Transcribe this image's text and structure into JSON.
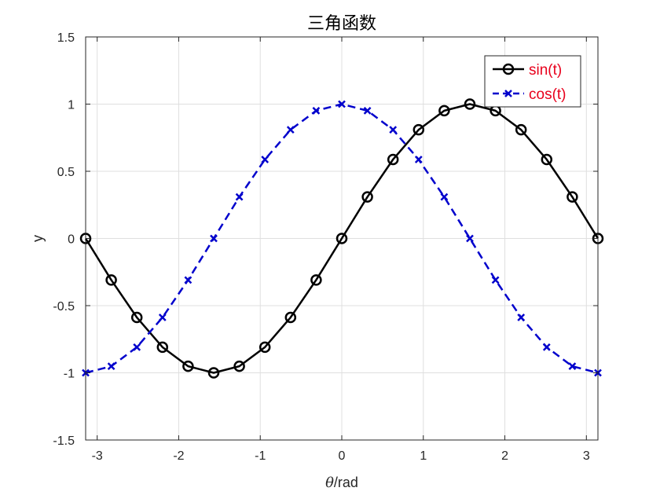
{
  "chart_data": {
    "type": "line",
    "title": "三角函数",
    "xlabel": "θ/rad",
    "ylabel": "y",
    "xlim": [
      -3.1416,
      3.1416
    ],
    "ylim": [
      -1.5,
      1.5
    ],
    "xticks": [
      -3,
      -2,
      -1,
      0,
      1,
      2,
      3
    ],
    "yticks": [
      -1.5,
      -1,
      -0.5,
      0,
      0.5,
      1,
      1.5
    ],
    "xtick_labels": [
      "-3",
      "-2",
      "-1",
      "0",
      "1",
      "2",
      "3"
    ],
    "ytick_labels": [
      "-1.5",
      "-1",
      "-0.5",
      "0",
      "0.5",
      "1",
      "1.5"
    ],
    "grid": true,
    "legend_position": "top-right",
    "legend_text_color": "#e8001c",
    "x": [
      -3.1416,
      -2.8274,
      -2.5133,
      -2.1991,
      -1.885,
      -1.5708,
      -1.2566,
      -0.9425,
      -0.6283,
      -0.3142,
      0,
      0.3142,
      0.6283,
      0.9425,
      1.2566,
      1.5708,
      1.885,
      2.1991,
      2.5133,
      2.8274,
      3.1416
    ],
    "series": [
      {
        "name": "sin(t)",
        "color": "#000000",
        "line_style": "solid",
        "marker": "circle",
        "values": [
          0,
          -0.309,
          -0.5878,
          -0.809,
          -0.9511,
          -1,
          -0.9511,
          -0.809,
          -0.5878,
          -0.309,
          0,
          0.309,
          0.5878,
          0.809,
          0.9511,
          1,
          0.9511,
          0.809,
          0.5878,
          0.309,
          0
        ]
      },
      {
        "name": "cos(t)",
        "color": "#0000cc",
        "line_style": "dashed",
        "marker": "x",
        "values": [
          -1,
          -0.9511,
          -0.809,
          -0.5878,
          -0.309,
          0,
          0.309,
          0.5878,
          0.809,
          0.9511,
          1,
          0.9511,
          0.809,
          0.5878,
          0.309,
          0,
          -0.309,
          -0.5878,
          -0.809,
          -0.9511,
          -1
        ]
      }
    ]
  }
}
